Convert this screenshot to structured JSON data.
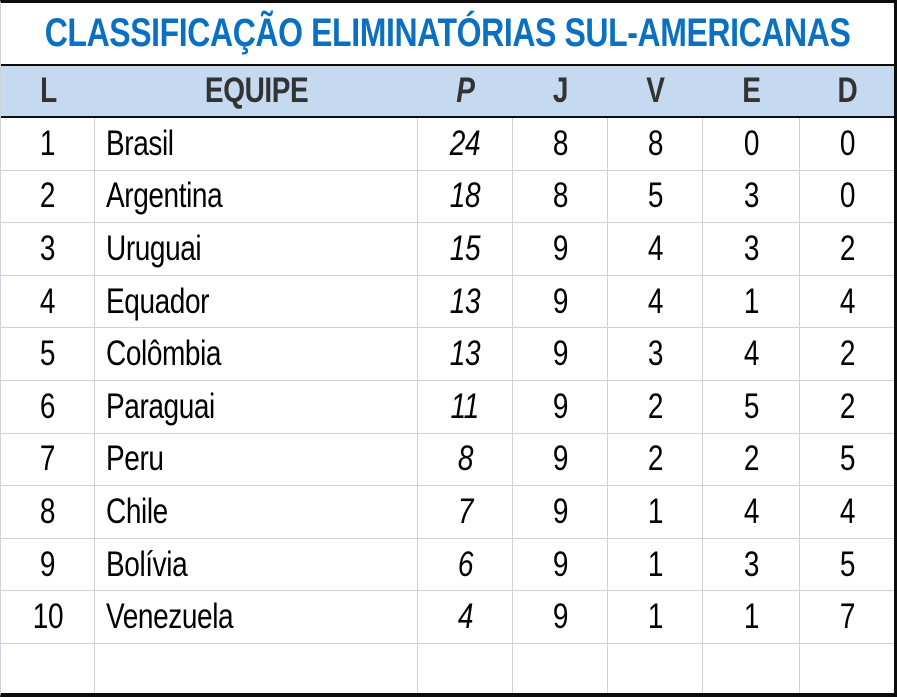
{
  "title": "CLASSIFICAÇÃO ELIMINATÓRIAS SUL-AMERICANAS",
  "colors": {
    "title_blue": "#0c70c0",
    "header_background": "#c5d9f0",
    "header_text": "#333333",
    "grid_line": "#cdd2db",
    "outer_border": "#0d0d0d"
  },
  "chart_data": {
    "type": "table",
    "title": "CLASSIFICAÇÃO ELIMINATÓRIAS SUL-AMERICANAS",
    "columns": [
      "L",
      "EQUIPE",
      "P",
      "J",
      "V",
      "E",
      "D"
    ],
    "rows": [
      [
        1,
        "Brasil",
        24,
        8,
        8,
        0,
        0
      ],
      [
        2,
        "Argentina",
        18,
        8,
        5,
        3,
        0
      ],
      [
        3,
        "Uruguai",
        15,
        9,
        4,
        3,
        2
      ],
      [
        4,
        "Equador",
        13,
        9,
        4,
        1,
        4
      ],
      [
        5,
        "Colômbia",
        13,
        9,
        3,
        4,
        2
      ],
      [
        6,
        "Paraguai",
        11,
        9,
        2,
        5,
        2
      ],
      [
        7,
        "Peru",
        8,
        9,
        2,
        2,
        5
      ],
      [
        8,
        "Chile",
        7,
        9,
        1,
        4,
        4
      ],
      [
        9,
        "Bolívia",
        6,
        9,
        1,
        3,
        5
      ],
      [
        10,
        "Venezuela",
        4,
        9,
        1,
        1,
        7
      ]
    ]
  }
}
